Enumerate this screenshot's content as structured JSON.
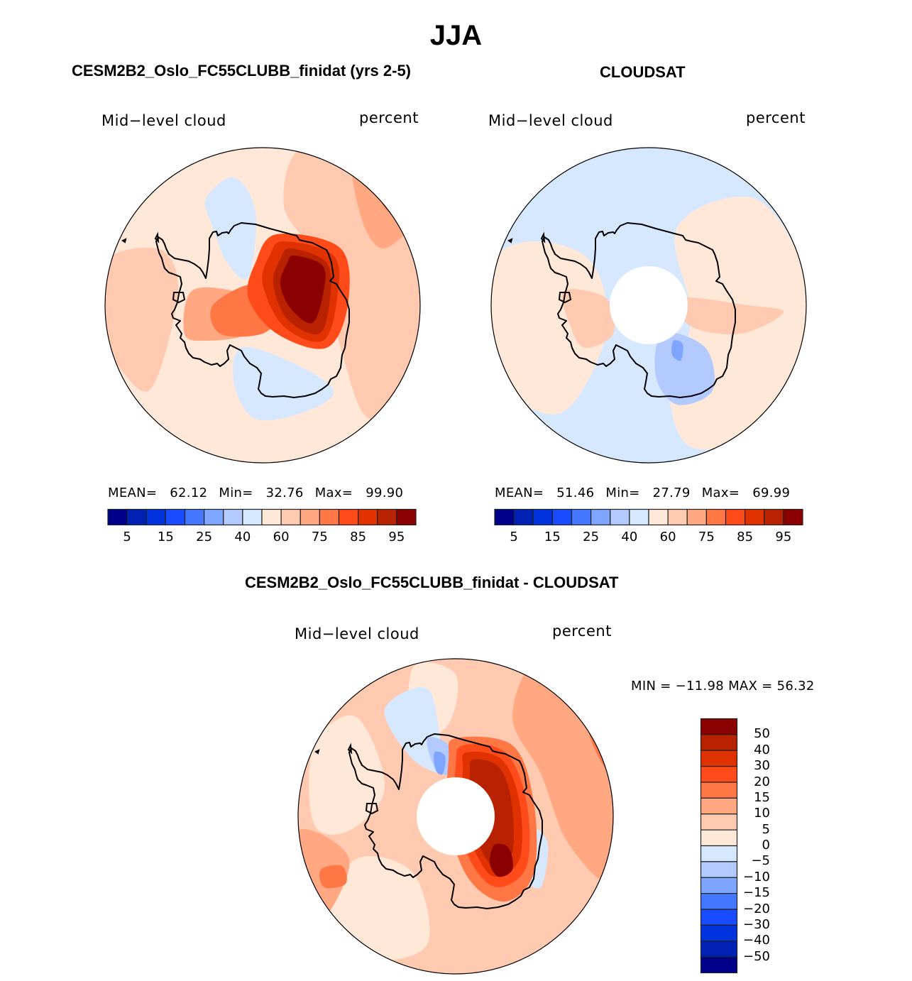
{
  "figure_title": "JJA",
  "palette": [
    "#00008a",
    "#0022b4",
    "#0033dd",
    "#1a4cff",
    "#4477ff",
    "#7fa6ff",
    "#b3caff",
    "#d6e8ff",
    "#ffe8d8",
    "#ffcab0",
    "#ffa882",
    "#ff7744",
    "#ff4b1a",
    "#e03200",
    "#b82200",
    "#8b0000"
  ],
  "panels": {
    "model": {
      "title": "CESM2B2_Oslo_FC55CLUBB_finidat (yrs 2-5)",
      "variable": "Mid−level cloud",
      "units": "percent",
      "stats": {
        "mean_label": "MEAN=",
        "mean": "62.12",
        "min_label": "Min=",
        "min": "32.76",
        "max_label": "Max=",
        "max": "99.90"
      },
      "colorbar_labels": [
        "5",
        "15",
        "25",
        "40",
        "60",
        "75",
        "85",
        "95"
      ]
    },
    "obs": {
      "title": "CLOUDSAT",
      "variable": "Mid−level cloud",
      "units": "percent",
      "stats": {
        "mean_label": "MEAN=",
        "mean": "51.46",
        "min_label": "Min=",
        "min": "27.79",
        "max_label": "Max=",
        "max": "69.99"
      },
      "colorbar_labels": [
        "5",
        "15",
        "25",
        "40",
        "60",
        "75",
        "85",
        "95"
      ]
    },
    "diff": {
      "title": "CESM2B2_Oslo_FC55CLUBB_finidat - CLOUDSAT",
      "variable": "Mid−level cloud",
      "units": "percent",
      "stats_text": "MIN = −11.98 MAX =  56.32",
      "colorbar_labels": [
        "50",
        "40",
        "30",
        "20",
        "15",
        "10",
        "5",
        "0",
        "−5",
        "−10",
        "−15",
        "−20",
        "−30",
        "−40",
        "−50"
      ]
    }
  },
  "chart_data": [
    {
      "type": "heatmap",
      "projection": "south-polar-stereographic",
      "title": "CESM2B2_Oslo_FC55CLUBB_finidat (yrs 2-5)",
      "variable": "Mid-level cloud",
      "units": "percent",
      "mean": 62.12,
      "min": 32.76,
      "max": 99.9,
      "levels": [
        5,
        10,
        15,
        20,
        25,
        30,
        40,
        50,
        60,
        65,
        70,
        75,
        80,
        85,
        90,
        95
      ],
      "colorbar_tick_labels": [
        5,
        15,
        25,
        40,
        60,
        75,
        85,
        95
      ],
      "regions": [
        {
          "name": "Southern Ocean background",
          "level_index": 9
        },
        {
          "name": "outer ring Indian/Pacific sectors",
          "level_index": 10
        },
        {
          "name": "East Antarctic plateau maximum",
          "level_index": 15
        },
        {
          "name": "Weddell & Ross Sea minima",
          "level_index": 7
        }
      ]
    },
    {
      "type": "heatmap",
      "projection": "south-polar-stereographic",
      "title": "CLOUDSAT",
      "variable": "Mid-level cloud",
      "units": "percent",
      "mean": 51.46,
      "min": 27.79,
      "max": 69.99,
      "levels": [
        5,
        10,
        15,
        20,
        25,
        30,
        40,
        50,
        60,
        65,
        70,
        75,
        80,
        85,
        90,
        95
      ],
      "colorbar_tick_labels": [
        5,
        15,
        25,
        40,
        60,
        75,
        85,
        95
      ],
      "missing_data": "polar cap south of ~82S",
      "regions": [
        {
          "name": "ocean background",
          "level_index": 7
        },
        {
          "name": "East Antarctica / peninsula",
          "level_index": 8
        },
        {
          "name": "Ross Ice Shelf minimum",
          "level_index": 6
        }
      ]
    },
    {
      "type": "heatmap",
      "projection": "south-polar-stereographic",
      "title": "CESM2B2_Oslo_FC55CLUBB_finidat - CLOUDSAT",
      "variable": "Mid-level cloud",
      "units": "percent",
      "min": -11.98,
      "max": 56.32,
      "levels": [
        -50,
        -40,
        -30,
        -20,
        -15,
        -10,
        -5,
        0,
        5,
        10,
        15,
        20,
        30,
        40,
        50
      ],
      "colorbar_tick_labels": [
        50,
        40,
        30,
        20,
        15,
        10,
        5,
        0,
        -5,
        -10,
        -15,
        -20,
        -30,
        -40,
        -50
      ],
      "missing_data": "polar cap south of ~82S",
      "regions": [
        {
          "name": "ocean background",
          "level_index": 9
        },
        {
          "name": "East Antarctic plateau maximum",
          "level_index": 15
        },
        {
          "name": "Weddell Sea coast minimum",
          "level_index": 5
        }
      ]
    }
  ]
}
